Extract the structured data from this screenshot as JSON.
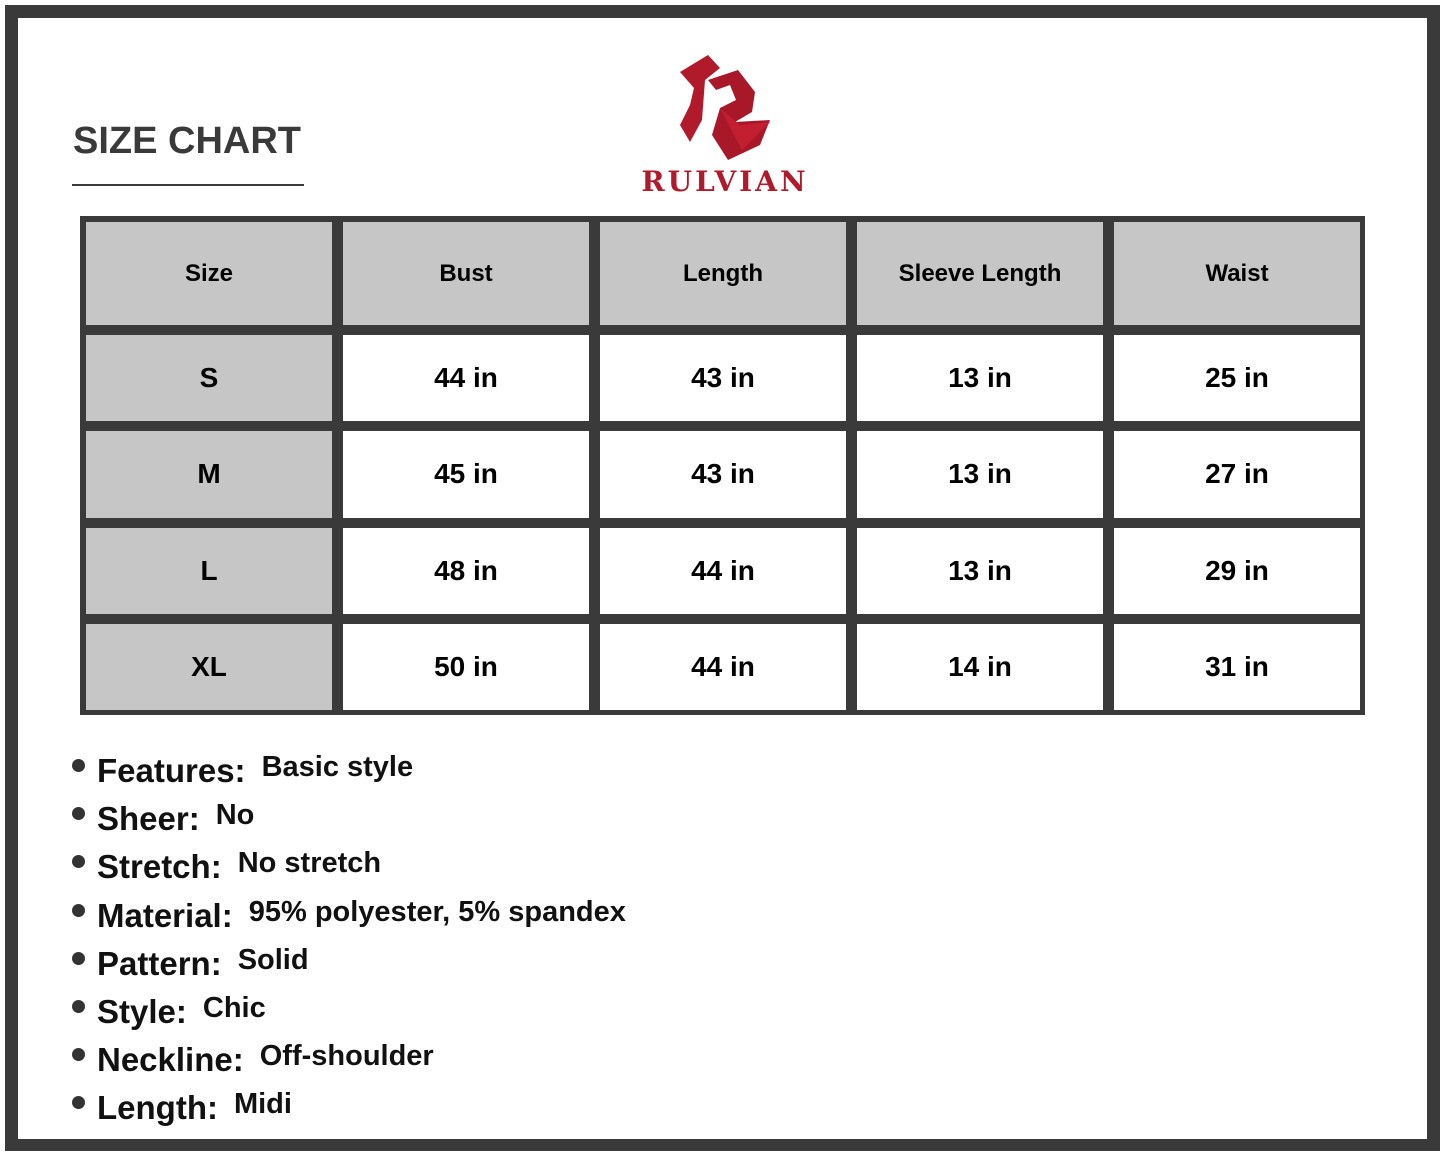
{
  "header": {
    "title": "SIZE CHART",
    "brand": "RULVIAN",
    "brand_color": "#b01a2a"
  },
  "table": {
    "columns": [
      "Size",
      "Bust",
      "Length",
      "Sleeve Length",
      "Waist"
    ],
    "rows": [
      [
        "S",
        "44 in",
        "43 in",
        "13 in",
        "25 in"
      ],
      [
        "M",
        "45 in",
        "43 in",
        "13 in",
        "27 in"
      ],
      [
        "L",
        "48 in",
        "44 in",
        "13 in",
        "29 in"
      ],
      [
        "XL",
        "50 in",
        "44 in",
        "14 in",
        "31 in"
      ]
    ]
  },
  "features": [
    {
      "key": "Features:",
      "value": "Basic style"
    },
    {
      "key": "Sheer:",
      "value": "No"
    },
    {
      "key": "Stretch:",
      "value": "No stretch"
    },
    {
      "key": "Material:",
      "value": "95% polyester, 5% spandex"
    },
    {
      "key": "Pattern:",
      "value": "Solid"
    },
    {
      "key": "Style:",
      "value": "Chic"
    },
    {
      "key": "Neckline:",
      "value": "Off-shoulder"
    },
    {
      "key": "Length:",
      "value": "Midi"
    }
  ]
}
